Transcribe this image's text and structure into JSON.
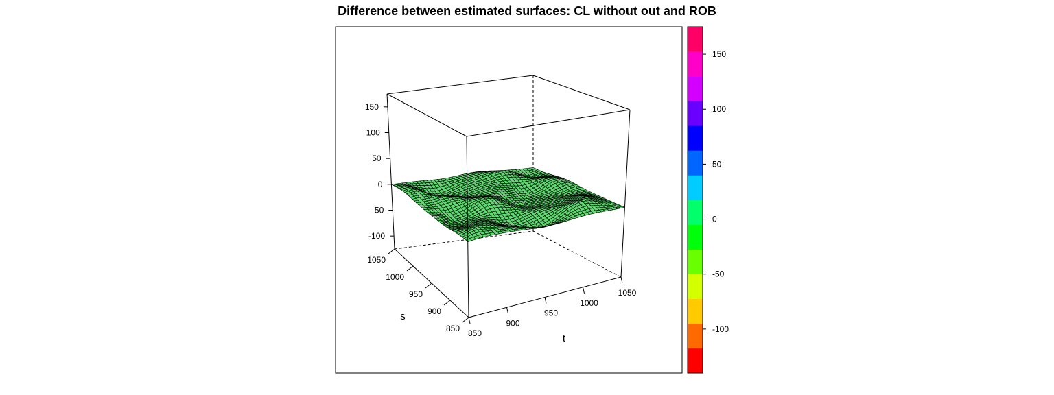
{
  "chart_data": {
    "type": "surface",
    "title": "Difference between estimated surfaces: CL without out and ROB",
    "xlabel": "t",
    "ylabel": "s",
    "zlabel": "",
    "x_ticks": [
      850,
      900,
      950,
      1000,
      1050
    ],
    "y_ticks": [
      850,
      900,
      950,
      1000,
      1050
    ],
    "z_ticks": [
      -100,
      -50,
      0,
      50,
      100,
      150
    ],
    "xlim": [
      850,
      1050
    ],
    "ylim": [
      850,
      1050
    ],
    "zlim": [
      -125,
      175
    ],
    "surface_color": "#5ddc6f",
    "surface_mesh_color": "#000000",
    "surface_z_range_estimate": [
      -25,
      20
    ],
    "surface_z_center": 0,
    "colorbar": {
      "ticks": [
        -100,
        -50,
        0,
        50,
        100,
        150
      ],
      "range": [
        -140,
        175
      ],
      "colors": [
        "#ff0000",
        "#ff6a00",
        "#ffca00",
        "#d4ff00",
        "#6aff00",
        "#00ff0a",
        "#00ff6a",
        "#00ccff",
        "#0066ff",
        "#0000ff",
        "#6a00ff",
        "#d400ff",
        "#ff00c8",
        "#ff0066"
      ]
    }
  }
}
